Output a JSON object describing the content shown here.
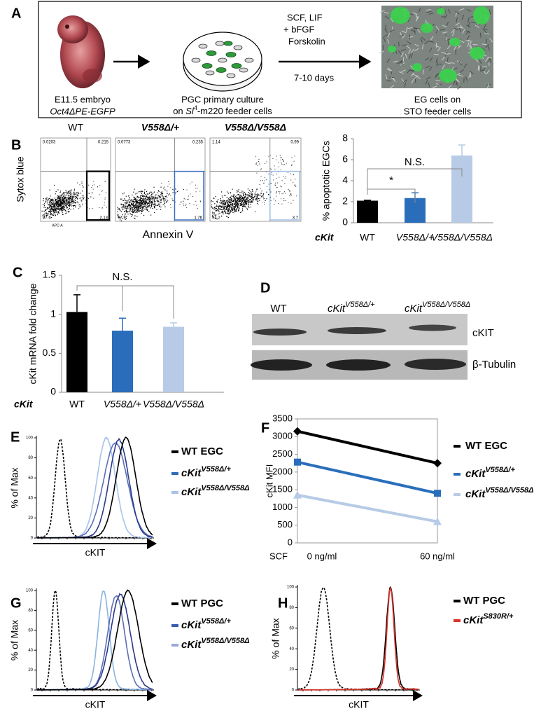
{
  "panel_a": {
    "label": "A",
    "embryo_caption": "E11.5 embryo",
    "embryo_line": "Oct4ΔPE-EGFP",
    "culture_caption": "PGC primary culture",
    "culture_line_prefix": "on ",
    "culture_line_sl": "Sl",
    "culture_line_sup": "4",
    "culture_line_suffix": "-m220  feeder cells",
    "conditions": [
      "SCF, LIF",
      "+ bFGF",
      "Forskolin",
      "7-10 days"
    ],
    "eg_caption": "EG cells on",
    "eg_line": "STO feeder cells"
  },
  "panel_b_flow": {
    "label": "B",
    "y_label": "Sytox blue",
    "x_label": "Annexin V",
    "x_channel": "APC-A",
    "plots": [
      {
        "title": "WT",
        "quadrants": [
          0.0203,
          0.215,
          97.6,
          2.13
        ]
      },
      {
        "title": "V558Δ/+",
        "quadrants": [
          0.0773,
          0.235,
          97.9,
          1.76
        ]
      },
      {
        "title": "V558Δ/V558Δ",
        "quadrants": [
          1.14,
          0.99,
          94.2,
          3.7
        ]
      }
    ]
  },
  "panel_d": {
    "label": "D",
    "lanes": [
      {
        "name": "WT"
      },
      {
        "name": "cKit",
        "sup": "V558Δ/+"
      },
      {
        "name": "cKit",
        "sup": "V558Δ/V558Δ"
      }
    ],
    "bands": [
      "cKIT",
      "β-Tubulin"
    ]
  },
  "panel_e": {
    "label": "E",
    "y_label": "% of Max",
    "x_label": "cKIT",
    "ylim": [
      0,
      100
    ],
    "yticks": [
      0,
      20,
      40,
      60,
      80,
      100
    ],
    "legend": [
      {
        "name": "WT EGC",
        "color": "#000000"
      },
      {
        "name": "cKit",
        "sup": "V558Δ/+",
        "color": "#2f6db5"
      },
      {
        "name": "cKit",
        "sup": "V558Δ/V558Δ",
        "color": "#a7c3e8"
      }
    ]
  },
  "panel_g": {
    "label": "G",
    "y_label": "% of Max",
    "x_label": "cKIT",
    "ylim": [
      0,
      100
    ],
    "yticks": [
      0,
      20,
      40,
      60,
      80,
      100
    ],
    "legend": [
      {
        "name": "WT PGC",
        "color": "#000000"
      },
      {
        "name": "cKit",
        "sup": "V558Δ/+",
        "color": "#3a5cb0"
      },
      {
        "name": "cKit",
        "sup": "V558Δ/V558Δ",
        "color": "#9aa8dc"
      }
    ]
  },
  "panel_h": {
    "label": "H",
    "y_label": "% of Max",
    "x_label": "cKIT",
    "ylim": [
      0,
      100
    ],
    "yticks": [
      0,
      20,
      40,
      60,
      80,
      100
    ],
    "legend": [
      {
        "name": "WT PGC",
        "color": "#000000"
      },
      {
        "name": "cKit",
        "sup": "S830R/+",
        "color": "#d9342b"
      }
    ]
  },
  "chart_data": [
    {
      "type": "bar",
      "y_label": "% apoptotic EGCs",
      "x_prefix": "cKit",
      "categories": [
        "WT",
        "V558Δ/+",
        "V558Δ/V558Δ"
      ],
      "values": [
        2.1,
        2.35,
        6.4
      ],
      "errors": [
        0.05,
        0.5,
        1.0
      ],
      "colors": [
        "#000000",
        "#2a6ebb",
        "#b7cbe6"
      ],
      "ylim": [
        0,
        8
      ],
      "yticks": [
        0,
        2,
        4,
        6,
        8
      ],
      "annotations": [
        "N.S.",
        "*"
      ]
    },
    {
      "type": "bar",
      "panel_label": "C",
      "y_label": "cKit mRNA fold change",
      "x_prefix": "cKit",
      "categories": [
        "WT",
        "V558Δ/+",
        "V558Δ/V558Δ"
      ],
      "values": [
        1.03,
        0.79,
        0.84
      ],
      "errors": [
        0.22,
        0.16,
        0.05
      ],
      "colors": [
        "#000000",
        "#2a6ebb",
        "#b7cbe6"
      ],
      "ylim": [
        0,
        1.5
      ],
      "yticks": [
        0,
        0.5,
        1,
        1.5
      ],
      "annotations": [
        "N.S."
      ]
    },
    {
      "type": "line",
      "panel_label": "F",
      "y_label": "cKit MFI",
      "x_prefix": "SCF",
      "categories": [
        "0 ng/ml",
        "60 ng/ml"
      ],
      "ylim": [
        0,
        3500
      ],
      "yticks": [
        0,
        500,
        1000,
        1500,
        2000,
        2500,
        3000,
        3500
      ],
      "series": [
        {
          "name": "WT EGC",
          "color": "#000000",
          "marker": "diamond",
          "values": [
            3150,
            2250
          ]
        },
        {
          "name": "cKit",
          "name_sup": "V558Δ/+",
          "color": "#2a6ebb",
          "marker": "square",
          "values": [
            2280,
            1400
          ]
        },
        {
          "name": "cKit",
          "name_sup": "V558Δ/V558Δ",
          "color": "#b7cbe6",
          "marker": "triangle",
          "values": [
            1350,
            600
          ]
        }
      ]
    }
  ]
}
